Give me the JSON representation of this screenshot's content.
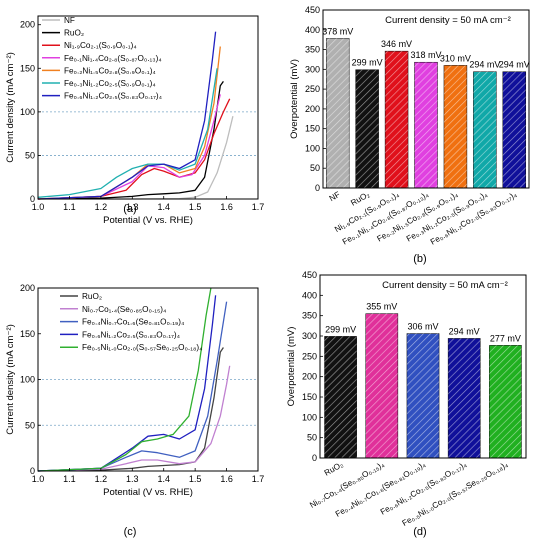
{
  "panels": [
    {
      "id": "a",
      "label": "(a)",
      "chart_data": {
        "type": "line",
        "xlabel": "Potential (V vs. RHE)",
        "ylabel": "Current density (mA cm⁻²)",
        "xlim": [
          1.0,
          1.7
        ],
        "ylim": [
          0,
          210
        ],
        "xticks": [
          "1.0",
          "1.1",
          "1.2",
          "1.3",
          "1.4",
          "1.5",
          "1.6",
          "1.7"
        ],
        "yticks": [
          "0",
          "50",
          "100",
          "150",
          "200"
        ],
        "reference_lines": [
          50,
          100
        ],
        "legend_position": "top-left",
        "series": [
          {
            "name": "NF",
            "color": "#bdbdbd",
            "points": [
              [
                1.0,
                0
              ],
              [
                1.3,
                0
              ],
              [
                1.45,
                0.5
              ],
              [
                1.5,
                2
              ],
              [
                1.54,
                8
              ],
              [
                1.57,
                30
              ],
              [
                1.6,
                65
              ],
              [
                1.62,
                95
              ]
            ]
          },
          {
            "name": "RuO₂",
            "color": "#000000",
            "points": [
              [
                1.0,
                0
              ],
              [
                1.2,
                1
              ],
              [
                1.3,
                3
              ],
              [
                1.35,
                5
              ],
              [
                1.4,
                6
              ],
              [
                1.45,
                7
              ],
              [
                1.5,
                10
              ],
              [
                1.53,
                25
              ],
              [
                1.56,
                80
              ],
              [
                1.58,
                130
              ],
              [
                1.59,
                135
              ]
            ]
          },
          {
            "name": "Ni₁.₉Co₂.₁(S₀.₉O₀.₁)₄",
            "color": "#e0101b",
            "points": [
              [
                1.0,
                0
              ],
              [
                1.2,
                3
              ],
              [
                1.28,
                10
              ],
              [
                1.33,
                28
              ],
              [
                1.37,
                35
              ],
              [
                1.4,
                32
              ],
              [
                1.45,
                25
              ],
              [
                1.5,
                30
              ],
              [
                1.53,
                45
              ],
              [
                1.56,
                75
              ],
              [
                1.59,
                100
              ],
              [
                1.61,
                115
              ]
            ]
          },
          {
            "name": "Fe₀.₁Ni₁.₄Co₂.₈(S₀.₈₇O₀.₁₃)₄",
            "color": "#e040e0",
            "points": [
              [
                1.0,
                0
              ],
              [
                1.2,
                3
              ],
              [
                1.3,
                20
              ],
              [
                1.35,
                38
              ],
              [
                1.4,
                36
              ],
              [
                1.45,
                25
              ],
              [
                1.49,
                28
              ],
              [
                1.53,
                50
              ],
              [
                1.56,
                90
              ],
              [
                1.58,
                120
              ]
            ]
          },
          {
            "name": "Fe₀.₂Ni₁.₅Co₂.₈(S₀.₉O₀.₁)₄",
            "color": "#f08020",
            "points": [
              [
                1.0,
                0
              ],
              [
                1.2,
                3
              ],
              [
                1.3,
                25
              ],
              [
                1.35,
                40
              ],
              [
                1.4,
                40
              ],
              [
                1.45,
                30
              ],
              [
                1.5,
                35
              ],
              [
                1.53,
                60
              ],
              [
                1.56,
                110
              ],
              [
                1.58,
                175
              ]
            ]
          },
          {
            "name": "Fe₀.₃Ni₁.₂Co₂.₅(S₀.₉O₀.₁)₄",
            "color": "#20b0b0",
            "points": [
              [
                1.0,
                2
              ],
              [
                1.1,
                5
              ],
              [
                1.2,
                12
              ],
              [
                1.25,
                25
              ],
              [
                1.3,
                35
              ],
              [
                1.35,
                40
              ],
              [
                1.4,
                40
              ],
              [
                1.45,
                33
              ],
              [
                1.5,
                40
              ],
              [
                1.54,
                80
              ],
              [
                1.57,
                150
              ]
            ]
          },
          {
            "name": "Fe₀.₆Ni₁.₂Co₂.₅(S₀.₈₃O₀.₁₇)₄",
            "color": "#2020c0",
            "points": [
              [
                1.0,
                0
              ],
              [
                1.2,
                3
              ],
              [
                1.3,
                25
              ],
              [
                1.35,
                38
              ],
              [
                1.4,
                40
              ],
              [
                1.45,
                35
              ],
              [
                1.5,
                45
              ],
              [
                1.53,
                90
              ],
              [
                1.555,
                160
              ],
              [
                1.565,
                192
              ]
            ]
          }
        ]
      }
    },
    {
      "id": "b",
      "label": "(b)",
      "chart_data": {
        "type": "bar",
        "title": "Current density = 50 mA cm⁻²",
        "ylabel": "Overpotential (mV)",
        "ylim": [
          0,
          450
        ],
        "yticks": [
          "0",
          "50",
          "100",
          "150",
          "200",
          "250",
          "300",
          "350",
          "400",
          "450"
        ],
        "categories": [
          "NF",
          "RuO₂",
          "Ni₁.₉Co₂.₁(S₀.₉O₀.₁)₄",
          "Fe₀.₁Ni₁.₄Co₂.₈(S₀.₈₇O₀.₁₃)₄",
          "Fe₀.₂Ni₁.₅Co₂.₈(S₀.₉O₀.₁)₄",
          "Fe₀.₃Ni₁.₂Co₂.₅(S₀.₉O₀.₁)₄",
          "Fe₀.₆Ni₁.₂Co₂.₅(S₀.₈₃O₀.₁₇)₄"
        ],
        "values": [
          378,
          299,
          346,
          318,
          310,
          294,
          294
        ],
        "value_labels": [
          "378 mV",
          "299 mV",
          "346 mV",
          "318 mV",
          "310 mV",
          "294 mV",
          "294 mV"
        ],
        "colors": [
          "#b0b0b0",
          "#111111",
          "#e0101b",
          "#e040e0",
          "#f07010",
          "#10a8a8",
          "#10109a"
        ]
      }
    },
    {
      "id": "c",
      "label": "(c)",
      "chart_data": {
        "type": "line",
        "xlabel": "Potential (V vs. RHE)",
        "ylabel": "Current density (mA cm⁻²)",
        "xlim": [
          1.0,
          1.7
        ],
        "ylim": [
          0,
          200
        ],
        "xticks": [
          "1.0",
          "1.1",
          "1.2",
          "1.3",
          "1.4",
          "1.5",
          "1.6",
          "1.7"
        ],
        "yticks": [
          "0",
          "50",
          "100",
          "150",
          "200"
        ],
        "reference_lines": [
          50,
          100
        ],
        "legend_position": "top-left",
        "series": [
          {
            "name": "RuO₂",
            "color": "#444444",
            "points": [
              [
                1.0,
                0
              ],
              [
                1.2,
                1
              ],
              [
                1.3,
                3
              ],
              [
                1.35,
                5
              ],
              [
                1.4,
                6
              ],
              [
                1.45,
                7
              ],
              [
                1.5,
                10
              ],
              [
                1.53,
                25
              ],
              [
                1.56,
                80
              ],
              [
                1.58,
                130
              ],
              [
                1.59,
                135
              ]
            ]
          },
          {
            "name": "Ni₀.₇Co₁.₄(Se₀.₈₅O₀.₁₅)₄",
            "color": "#c080d0",
            "points": [
              [
                1.0,
                0
              ],
              [
                1.2,
                2
              ],
              [
                1.28,
                8
              ],
              [
                1.33,
                12
              ],
              [
                1.38,
                12
              ],
              [
                1.45,
                8
              ],
              [
                1.5,
                10
              ],
              [
                1.55,
                30
              ],
              [
                1.58,
                60
              ],
              [
                1.6,
                95
              ],
              [
                1.61,
                115
              ]
            ]
          },
          {
            "name": "Fe₀.₄Ni₀.₇Co₁.₆(Se₀.₈₁O₀.₁₉)₄",
            "color": "#4060c0",
            "points": [
              [
                1.0,
                0
              ],
              [
                1.2,
                3
              ],
              [
                1.28,
                15
              ],
              [
                1.33,
                22
              ],
              [
                1.38,
                20
              ],
              [
                1.45,
                15
              ],
              [
                1.5,
                22
              ],
              [
                1.54,
                60
              ],
              [
                1.57,
                120
              ],
              [
                1.6,
                185
              ]
            ]
          },
          {
            "name": "Fe₀.₆Ni₁.₂Co₂.₅(S₀.₈₃O₀.₁₇)₄",
            "color": "#2020c0",
            "points": [
              [
                1.0,
                0
              ],
              [
                1.2,
                3
              ],
              [
                1.3,
                25
              ],
              [
                1.35,
                38
              ],
              [
                1.4,
                40
              ],
              [
                1.45,
                35
              ],
              [
                1.5,
                45
              ],
              [
                1.53,
                90
              ],
              [
                1.555,
                160
              ],
              [
                1.565,
                192
              ]
            ]
          },
          {
            "name": "Fe₀.₅Ni₁.₀Co₂.₀(S₀.₅₇Se₀.₂₅O₀.₁₈)₄",
            "color": "#30b030",
            "points": [
              [
                1.0,
                0
              ],
              [
                1.2,
                3
              ],
              [
                1.28,
                18
              ],
              [
                1.33,
                32
              ],
              [
                1.38,
                35
              ],
              [
                1.43,
                40
              ],
              [
                1.48,
                60
              ],
              [
                1.51,
                110
              ],
              [
                1.535,
                170
              ],
              [
                1.55,
                200
              ]
            ]
          }
        ]
      }
    },
    {
      "id": "d",
      "label": "(d)",
      "chart_data": {
        "type": "bar",
        "title": "Current density = 50 mA cm⁻²",
        "ylabel": "Overpotential (mV)",
        "ylim": [
          0,
          450
        ],
        "yticks": [
          "0",
          "50",
          "100",
          "150",
          "200",
          "250",
          "300",
          "350",
          "400",
          "450"
        ],
        "categories": [
          "RuO₂",
          "Ni₀.₇Co₁.₄(Se₀.₈₅O₀.₁₅)₄",
          "Fe₀.₄Ni₀.₇Co₁.₆(Se₀.₈₁O₀.₁₉)₄",
          "Fe₀.₆Ni₁.₂Co₂.₅(S₀.₈₃O₀.₁₇)₄",
          "Fe₀.₅Ni₁.₀Co₂.₀(S₀.₅₇Se₀.₂₅O₀.₁₈)₄"
        ],
        "values": [
          299,
          355,
          306,
          294,
          277
        ],
        "value_labels": [
          "299 mV",
          "355 mV",
          "306 mV",
          "294 mV",
          "277 mV"
        ],
        "colors": [
          "#111111",
          "#e0309a",
          "#3050c0",
          "#10109a",
          "#20b020"
        ]
      }
    }
  ]
}
